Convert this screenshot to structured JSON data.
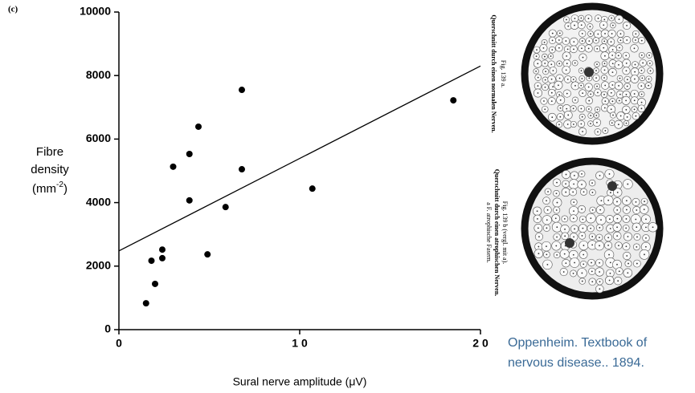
{
  "chart_data": {
    "type": "scatter",
    "panel_label": "(c)",
    "x_label": "Sural nerve amplitude (μV)",
    "y_label_lines": [
      "Fibre",
      "density"
    ],
    "y_label_unit": "(mm",
    "y_label_exponent": "-2",
    "y_label_close": ")",
    "xlim": [
      0,
      20
    ],
    "ylim": [
      0,
      10000
    ],
    "xticks": [
      0,
      {
        "value": 10,
        "label": "1 0"
      },
      {
        "value": 20,
        "label": "2 0"
      }
    ],
    "yticks": [
      0,
      2000,
      4000,
      6000,
      8000,
      10000
    ],
    "series": [
      {
        "color": "#000000",
        "x": [
          1.5,
          1.8,
          2.0,
          2.4,
          2.4,
          3.0,
          3.9,
          3.9,
          4.4,
          4.9,
          5.9,
          6.8,
          6.8,
          10.7,
          18.5
        ],
        "values": [
          830,
          2170,
          1440,
          2250,
          2520,
          5130,
          5530,
          4070,
          6390,
          2370,
          3860,
          7550,
          5050,
          4440,
          7220
        ]
      }
    ],
    "fit": {
      "color": "#000000",
      "x": [
        0,
        20
      ],
      "values": [
        2480,
        8300
      ]
    }
  },
  "figure": {
    "label_a": "Fig. 139 a.",
    "text_a": "Querschnitt durch einen normalen Nerven.",
    "label_b": "Fig. 139 b (vergl. mit a).",
    "text_b": "Querschnitt durch einen atrophischen Nerven.",
    "text_b2": "a F. atrophische Fasern.",
    "caption_lines": [
      "Oppenheim. Textbook of",
      "nervous disease.. 1894."
    ]
  }
}
